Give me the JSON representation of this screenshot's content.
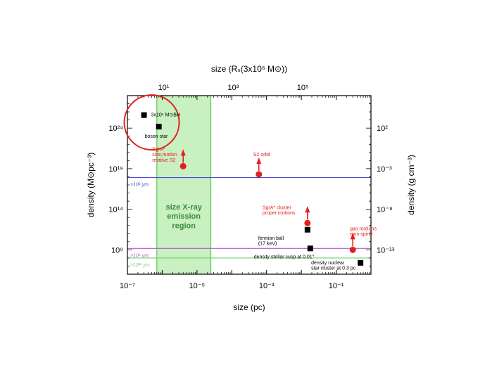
{
  "chart_data": {
    "type": "scatter",
    "title": "",
    "xlabel": "size (pc)",
    "ylabel_left": "density (M⊙pc⁻³)",
    "ylabel_right": "density (g cm⁻³)",
    "xlabel_top": "size (Rₛ(3x10⁶ M⊙))",
    "x_scale": "log",
    "y_scale": "log",
    "xlim": [
      1e-07,
      1
    ],
    "ylim": [
      1000000.0,
      1e+28
    ],
    "x_ticks": [
      "10⁻⁷",
      "10⁻⁵",
      "10⁻³",
      "10⁻¹"
    ],
    "y_ticks": [
      "10⁹",
      "10¹⁴",
      "10¹⁹",
      "10²⁴"
    ],
    "top_ticks": [
      "10¹",
      "10³",
      "10⁵"
    ],
    "right_ticks": [
      "10²",
      "10⁻³",
      "10⁻⁸",
      "10⁻¹³"
    ],
    "shaded_band": {
      "label_line1": "size X-ray",
      "label_line2": "emission",
      "label_line3": "region",
      "x_range": [
        7e-07,
        2.5e-05
      ],
      "color": "#c8f0c0"
    },
    "horizontal_lines": [
      {
        "label": ">10⁶ yrs",
        "y": 8e+17,
        "color": "#4a4adc"
      },
      {
        "label": ">10⁵ yrs",
        "y": 1500000000.0,
        "color": "#c050d8"
      },
      {
        "label": ">10¹² yrs",
        "y": 100000000.0,
        "color": "#70d070"
      }
    ],
    "series": [
      {
        "name": "black",
        "color": "#000000",
        "marker": "square",
        "points": [
          {
            "x": 3e-07,
            "y": 4e+25,
            "label": "3x10⁶ M⊙BH"
          },
          {
            "x": 8e-07,
            "y": 1.5e+24,
            "label": "boson star"
          },
          {
            "x": 0.015,
            "y": 300000000000.0,
            "label": "fermion ball\n(17 keV)"
          },
          {
            "x": 0.018,
            "y": 1500000000.0,
            "label": "density stellar cusp at 0.01″"
          },
          {
            "x": 0.5,
            "y": 25000000.0,
            "label": "density nuclear\nstar cluster at 0.3 pc"
          }
        ]
      },
      {
        "name": "red",
        "color": "#e02020",
        "marker": "circle",
        "points": [
          {
            "x": 4e-06,
            "y": 2e+19,
            "label": "SgrA*\nsize,motion\nrelative S2",
            "lower_limit": true
          },
          {
            "x": 0.0006,
            "y": 2e+18,
            "label": "S2 orbit",
            "lower_limit": true
          },
          {
            "x": 0.015,
            "y": 2000000000000.0,
            "label": "SgrA* cluster\nproper motions",
            "lower_limit": true
          },
          {
            "x": 0.3,
            "y": 1000000000.0,
            "label": "gas motions\nmini-spiral",
            "lower_limit": true
          }
        ]
      }
    ],
    "highlight_circle": {
      "center": [
        5e-07,
        5e+24
      ],
      "color": "#e02020"
    }
  }
}
